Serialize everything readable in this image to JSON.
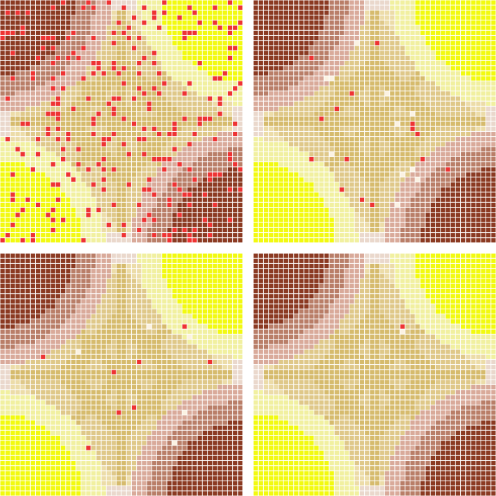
{
  "grid": {
    "cells_per_side": 48
  },
  "palette": {
    "dark_brown": "#8b3a22",
    "mid_brown": "#b97e68",
    "light_brown": "#d9aa9a",
    "pale_rose": "#ead8cc",
    "bright_yellow": "#f2fa10",
    "light_yellow": "#f1f0a0",
    "cream": "#ecdca8",
    "tan": "#dfc889",
    "gold": "#d6bb6d",
    "red": "#ee3333",
    "white_spot": "#fbf2e2",
    "gridline": "#ffffff"
  },
  "panels": [
    {
      "name": "top-left",
      "red_fraction": 0.11,
      "white_fraction": 0.0,
      "corner_orientation": "brown-top-left"
    },
    {
      "name": "top-right",
      "red_fraction": 0.02,
      "white_fraction": 0.012,
      "corner_orientation": "brown-top-left"
    },
    {
      "name": "bottom-left",
      "red_fraction": 0.006,
      "white_fraction": 0.004,
      "corner_orientation": "brown-top-left"
    },
    {
      "name": "bottom-right",
      "red_fraction": 0.0,
      "white_fraction": 0.0,
      "corner_orientation": "brown-top-left",
      "single_red_cell": true
    }
  ]
}
